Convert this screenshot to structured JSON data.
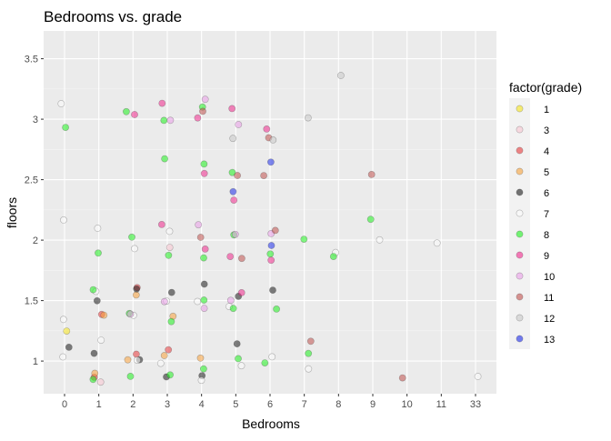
{
  "chart_data": {
    "type": "scatter",
    "title": "Bedrooms vs. grade",
    "xlabel": "Bedrooms",
    "ylabel": "floors",
    "x_scale": "categorical",
    "categories": [
      "0",
      "1",
      "2",
      "3",
      "4",
      "5",
      "6",
      "7",
      "8",
      "9",
      "10",
      "11",
      "33"
    ],
    "yticks": [
      "1",
      "1.5",
      "2",
      "2.5",
      "3",
      "3.5"
    ],
    "ylim": [
      0.73,
      3.73
    ],
    "grid": true,
    "legend": {
      "title": "factor(grade)",
      "placement": "right",
      "entries": [
        {
          "label": "1",
          "color": "#f5e51b"
        },
        {
          "label": "3",
          "color": "#f9c6d2"
        },
        {
          "label": "4",
          "color": "#e8383b"
        },
        {
          "label": "5",
          "color": "#f7a13a"
        },
        {
          "label": "6",
          "color": "#1a1a1a"
        },
        {
          "label": "7",
          "color": "#fbfbfb"
        },
        {
          "label": "8",
          "color": "#1ef01e"
        },
        {
          "label": "9",
          "color": "#f0288c"
        },
        {
          "label": "10",
          "color": "#e99de8"
        },
        {
          "label": "11",
          "color": "#c0504d"
        },
        {
          "label": "12",
          "color": "#c8c8c8"
        },
        {
          "label": "13",
          "color": "#1a2ae8"
        }
      ]
    },
    "series": [
      {
        "name": "1",
        "points": [
          [
            "0",
            1.18
          ]
        ]
      },
      {
        "name": "3",
        "points": [
          [
            "1",
            1.0
          ],
          [
            "3",
            2.0
          ]
        ]
      },
      {
        "name": "4",
        "points": [
          [
            "1",
            1.0
          ],
          [
            "1",
            1.5
          ],
          [
            "2",
            1.0
          ],
          [
            "2",
            1.5
          ],
          [
            "3",
            1.0
          ]
        ]
      },
      {
        "name": "5",
        "points": [
          [
            "1",
            1.0
          ],
          [
            "1",
            1.5
          ],
          [
            "2",
            1.0
          ],
          [
            "2",
            1.5
          ],
          [
            "3",
            1.0
          ],
          [
            "3",
            1.5
          ],
          [
            "4",
            1.0
          ]
        ]
      },
      {
        "name": "6",
        "points": [
          [
            "0",
            1.0
          ],
          [
            "1",
            1.0
          ],
          [
            "1",
            1.5
          ],
          [
            "2",
            1.0
          ],
          [
            "2",
            1.5
          ],
          [
            "3",
            1.0
          ],
          [
            "3",
            1.5
          ],
          [
            "4",
            1.0
          ],
          [
            "4",
            1.5
          ],
          [
            "5",
            1.0
          ],
          [
            "5",
            1.5
          ],
          [
            "6",
            1.5
          ]
        ]
      },
      {
        "name": "7",
        "points": [
          [
            "0",
            1.0
          ],
          [
            "0",
            1.5
          ],
          [
            "0",
            2.0
          ],
          [
            "0",
            3.0
          ],
          [
            "1",
            1.0
          ],
          [
            "1",
            1.5
          ],
          [
            "1",
            2.0
          ],
          [
            "2",
            1.0
          ],
          [
            "2",
            1.5
          ],
          [
            "2",
            2.0
          ],
          [
            "3",
            1.0
          ],
          [
            "3",
            1.5
          ],
          [
            "3",
            2.0
          ],
          [
            "4",
            1.0
          ],
          [
            "4",
            1.5
          ],
          [
            "5",
            1.0
          ],
          [
            "5",
            1.5
          ],
          [
            "6",
            1.0
          ],
          [
            "7",
            1.0
          ],
          [
            "8",
            2.0
          ],
          [
            "9",
            2.0
          ],
          [
            "11",
            2.0
          ],
          [
            "33",
            1.0
          ]
        ]
      },
      {
        "name": "8",
        "points": [
          [
            "0",
            3.0
          ],
          [
            "1",
            1.0
          ],
          [
            "1",
            1.5
          ],
          [
            "1",
            2.0
          ],
          [
            "2",
            1.0
          ],
          [
            "2",
            1.5
          ],
          [
            "2",
            2.0
          ],
          [
            "2",
            3.0
          ],
          [
            "3",
            1.0
          ],
          [
            "3",
            1.5
          ],
          [
            "3",
            2.0
          ],
          [
            "3",
            2.5
          ],
          [
            "3",
            3.0
          ],
          [
            "4",
            1.0
          ],
          [
            "4",
            1.5
          ],
          [
            "4",
            2.0
          ],
          [
            "4",
            2.5
          ],
          [
            "4",
            3.0
          ],
          [
            "5",
            1.0
          ],
          [
            "5",
            1.5
          ],
          [
            "5",
            2.0
          ],
          [
            "5",
            2.5
          ],
          [
            "6",
            1.0
          ],
          [
            "6",
            1.5
          ],
          [
            "6",
            2.0
          ],
          [
            "7",
            1.0
          ],
          [
            "7",
            2.0
          ],
          [
            "8",
            2.0
          ],
          [
            "9",
            2.0
          ]
        ]
      },
      {
        "name": "9",
        "points": [
          [
            "2",
            3.0
          ],
          [
            "3",
            2.0
          ],
          [
            "3",
            3.0
          ],
          [
            "4",
            2.0
          ],
          [
            "4",
            2.5
          ],
          [
            "4",
            3.0
          ],
          [
            "5",
            1.5
          ],
          [
            "5",
            2.0
          ],
          [
            "5",
            2.5
          ],
          [
            "5",
            3.0
          ],
          [
            "6",
            2.0
          ],
          [
            "6",
            3.0
          ]
        ]
      },
      {
        "name": "10",
        "points": [
          [
            "2",
            1.5
          ],
          [
            "3",
            1.5
          ],
          [
            "3",
            3.0
          ],
          [
            "4",
            1.5
          ],
          [
            "4",
            2.0
          ],
          [
            "4",
            3.0
          ],
          [
            "5",
            1.5
          ],
          [
            "5",
            2.0
          ],
          [
            "5",
            3.0
          ],
          [
            "6",
            2.0
          ]
        ]
      },
      {
        "name": "11",
        "points": [
          [
            "4",
            2.0
          ],
          [
            "4",
            3.0
          ],
          [
            "5",
            2.0
          ],
          [
            "5",
            2.5
          ],
          [
            "6",
            2.0
          ],
          [
            "6",
            2.5
          ],
          [
            "6",
            3.0
          ],
          [
            "7",
            1.0
          ],
          [
            "9",
            2.5
          ],
          [
            "10",
            1.0
          ]
        ]
      },
      {
        "name": "12",
        "points": [
          [
            "5",
            3.0
          ],
          [
            "6",
            3.0
          ],
          [
            "7",
            3.0
          ],
          [
            "8",
            3.5
          ]
        ]
      },
      {
        "name": "13",
        "points": [
          [
            "5",
            2.5
          ],
          [
            "6",
            2.0
          ],
          [
            "6",
            2.5
          ]
        ]
      }
    ]
  }
}
